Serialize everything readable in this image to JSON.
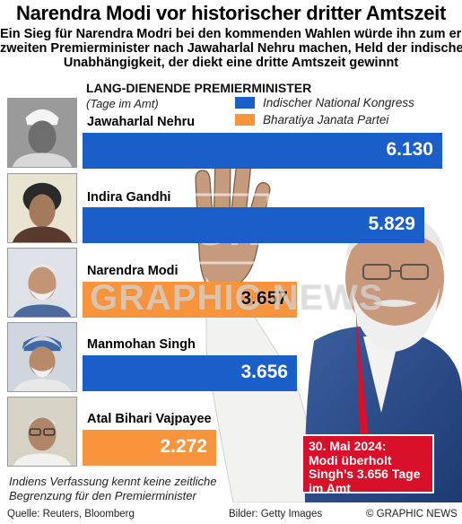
{
  "header": {
    "title": "Narendra Modi vor historischer dritter Amtszeit",
    "subtitle_lines": [
      "Ein Sieg für Narendra Modri bei den kommenden Wahlen würde ihn zum erst",
      "zweiten Premierminister nach  Jawaharlal Nehru machen, Held der indischen",
      "Unabhängigkeit, der diekt eine dritte Amtszeit gewinnt"
    ]
  },
  "chart_data": {
    "type": "bar",
    "orientation": "horizontal",
    "title": "LANG-DIENENDE PREMIERMINISTER",
    "unit": "(Tage im Amt)",
    "legend": {
      "placement": "top-right",
      "entries": [
        {
          "label": "Indischer National Kongress",
          "color": "#1a5ec9"
        },
        {
          "label": "Bharatiya Janata Partei",
          "color": "#f7943c"
        }
      ]
    },
    "categories": [
      "Jawaharlal Nehru",
      "Indira Gandhi",
      "Narendra Modi",
      "Manmohan Singh",
      "Atal Bihari Vajpayee"
    ],
    "series": [
      {
        "name": "Indischer National Kongress",
        "values": [
          6130,
          5829,
          null,
          3656,
          null
        ]
      },
      {
        "name": "Bharatiya Janata Partei",
        "values": [
          null,
          null,
          3657,
          null,
          2272
        ]
      }
    ],
    "value_labels": [
      "6.130",
      "5.829",
      "3.657",
      "3.656",
      "2.272"
    ],
    "xlim": [
      0,
      6300
    ]
  },
  "callout": {
    "lines": [
      "30. Mai 2024:",
      "Modi überholt",
      "Singh’s 3.656 Tage",
      "im Amt"
    ]
  },
  "footnote": {
    "lines": [
      "Indiens Verfassung kennt keine zeitliche",
      "Begrenzung für den Premierminister"
    ]
  },
  "footer": {
    "source": "Quelle: Reuters, Bloomberg",
    "images": "Bilder: Getty Images",
    "copyright": "© GRAPHIC NEWS"
  },
  "watermark": "GRAPHIC NEWS"
}
